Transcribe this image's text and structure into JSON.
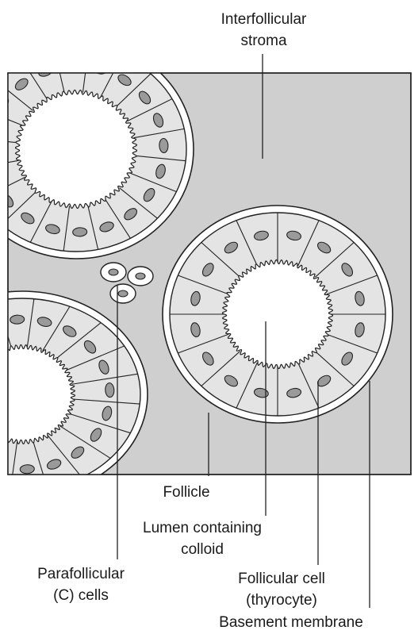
{
  "labels": {
    "interfollicular_stroma": [
      "Interfollicular",
      "stroma"
    ],
    "follicle": "Follicle",
    "lumen": [
      "Lumen containing",
      "colloid"
    ],
    "parafollicular": [
      "Parafollicular",
      "(C) cells"
    ],
    "follicular_cell": [
      "Follicular cell",
      "(thyrocyte)"
    ],
    "basement_membrane": "Basement membrane"
  },
  "colors": {
    "stroma": "#cfcfcf",
    "cell": "#e4e4e4",
    "membrane": "#ffffff",
    "nucleus": "#9a9a9a",
    "outline": "#222222"
  }
}
